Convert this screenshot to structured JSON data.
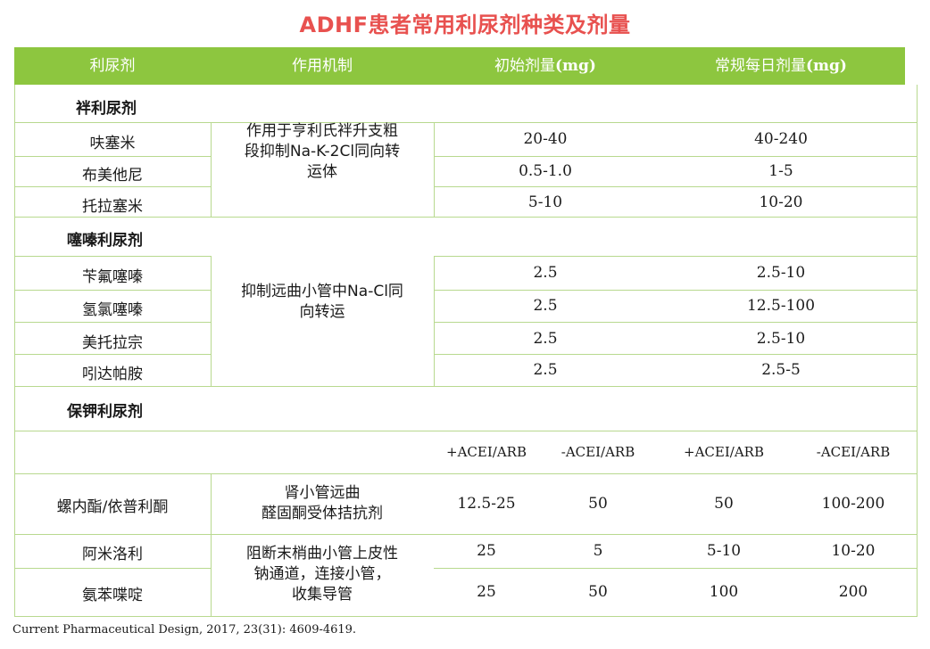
{
  "title": "ADHF患者常用利尿剂种类及剂量",
  "header": {
    "col1": "利尿剂",
    "col2": "作用机制",
    "col3_cn": "初始剂量",
    "col3_unit": "(mg)",
    "col4_cn": "常规每日剂量",
    "col4_unit": "(mg)"
  },
  "loop": {
    "category": "袢利尿剂",
    "mechanism_lines": [
      "作用于亨利氏袢升支粗",
      "段抑制Na-K-2Cl同向转",
      "运体"
    ],
    "rows": [
      {
        "drug": "呋塞米",
        "initial": "20-40",
        "daily": "40-240"
      },
      {
        "drug": "布美他尼",
        "initial": "0.5-1.0",
        "daily": "1-5"
      },
      {
        "drug": "托拉塞米",
        "initial": "5-10",
        "daily": "10-20"
      }
    ]
  },
  "thiazide": {
    "category": "噻嗪利尿剂",
    "mechanism_lines": [
      "抑制远曲小管中Na-Cl同",
      "向转运"
    ],
    "rows": [
      {
        "drug": "苄氟噻嗪",
        "initial": "2.5",
        "daily": "2.5-10"
      },
      {
        "drug": "氢氯噻嗪",
        "initial": "2.5",
        "daily": "12.5-100"
      },
      {
        "drug": "美托拉宗",
        "initial": "2.5",
        "daily": "2.5-10"
      },
      {
        "drug": "吲达帕胺",
        "initial": "2.5",
        "daily": "2.5-5"
      }
    ]
  },
  "potassium": {
    "category": "保钾利尿剂",
    "subheaders": [
      "+ACEI/ARB",
      "-ACEI/ARB",
      "+ACEI/ARB",
      "-ACEI/ARB"
    ],
    "spiro": {
      "drug": "螺内酯/依普利酮",
      "mechanism_lines": [
        "肾小管远曲",
        "醛固酮受体拮抗剂"
      ],
      "values": [
        "12.5-25",
        "50",
        "50",
        "100-200"
      ]
    },
    "enac_mechanism_lines": [
      "阻断末梢曲小管上皮性",
      "钠通道，连接小管，",
      "收集导管"
    ],
    "amiloride": {
      "drug": "阿米洛利",
      "values": [
        "25",
        "5",
        "5-10",
        "10-20"
      ]
    },
    "triamterene": {
      "drug": "氨苯喋啶",
      "values": [
        "25",
        "50",
        "100",
        "200"
      ]
    }
  },
  "citation": "Current Pharmaceutical Design, 2017, 23(31): 4609-4619."
}
